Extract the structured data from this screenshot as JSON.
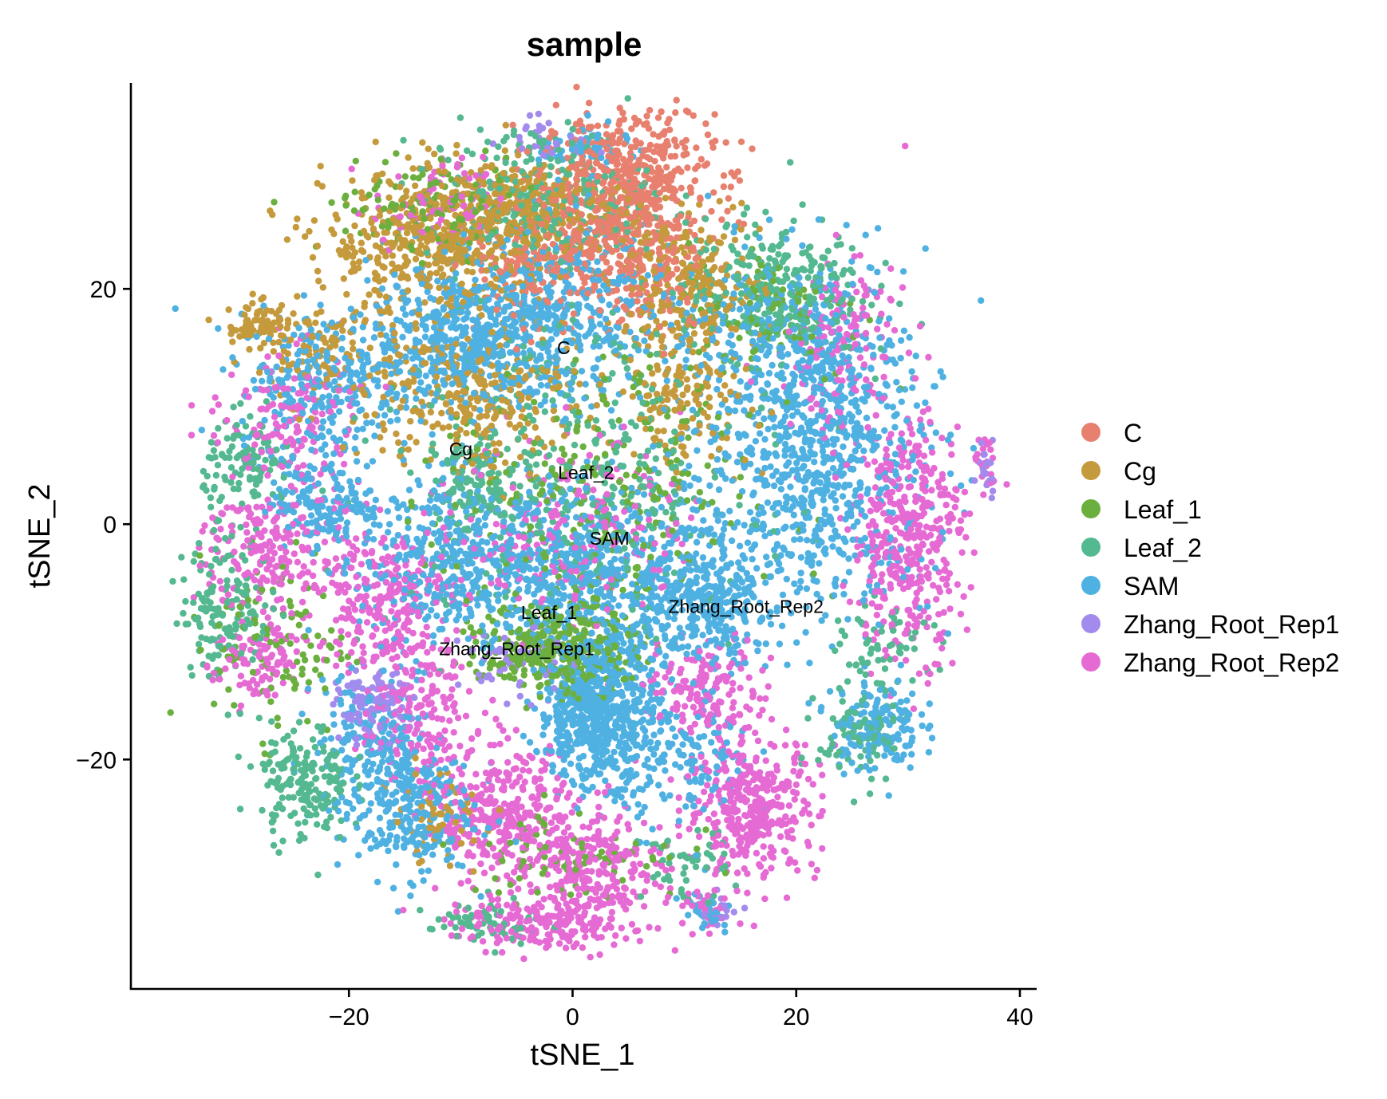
{
  "chart_data": {
    "type": "scatter",
    "title": "sample",
    "xlabel": "tSNE_1",
    "ylabel": "tSNE_2",
    "xlim": [
      -39.5,
      41.5
    ],
    "ylim": [
      -39.5,
      37.5
    ],
    "x_ticks": [
      -20,
      0,
      20,
      40
    ],
    "x_tick_labels": [
      "−20",
      "0",
      "20",
      "40"
    ],
    "y_ticks": [
      -20,
      0,
      20
    ],
    "y_tick_labels": [
      "−20",
      "0",
      "20"
    ],
    "grid": false,
    "legend_position": "right",
    "legend": [
      {
        "name": "C",
        "color": "#E7806F"
      },
      {
        "name": "Cg",
        "color": "#C49A3C"
      },
      {
        "name": "Leaf_1",
        "color": "#6BB03F"
      },
      {
        "name": "Leaf_2",
        "color": "#54B890"
      },
      {
        "name": "SAM",
        "color": "#4FB1E2"
      },
      {
        "name": "Zhang_Root_Rep1",
        "color": "#A38BEE"
      },
      {
        "name": "Zhang_Root_Rep2",
        "color": "#E66AD4"
      }
    ],
    "cluster_labels": [
      {
        "text": "C",
        "x": -0.8,
        "y": 15.0
      },
      {
        "text": "Cg",
        "x": -10.0,
        "y": 6.4
      },
      {
        "text": "Leaf_2",
        "x": 1.2,
        "y": 4.4
      },
      {
        "text": "SAM",
        "x": 3.3,
        "y": -1.2
      },
      {
        "text": "Leaf_1",
        "x": -2.1,
        "y": -7.5
      },
      {
        "text": "Zhang_Root_Rep2",
        "x": 15.5,
        "y": -7.0
      },
      {
        "text": "Zhang_Root_Rep1",
        "x": -5.0,
        "y": -10.6
      }
    ],
    "series": [
      {
        "name": "C",
        "color": "#E7806F",
        "clusters": [
          {
            "x": 5.0,
            "y": 29.0,
            "sx": 3.8,
            "sy": 3.0,
            "n": 520
          },
          {
            "x": 1.0,
            "y": 23.0,
            "sx": 4.0,
            "sy": 2.5,
            "n": 160
          },
          {
            "x": -4.0,
            "y": 21.5,
            "sx": 3.0,
            "sy": 2.0,
            "n": 90
          },
          {
            "x": 7.0,
            "y": 21.0,
            "sx": 3.0,
            "sy": 2.5,
            "n": 120
          }
        ]
      },
      {
        "name": "Cg",
        "color": "#C49A3C",
        "clusters": [
          {
            "x": -12.0,
            "y": 24.0,
            "sx": 5.0,
            "sy": 3.0,
            "n": 480
          },
          {
            "x": -3.0,
            "y": 27.0,
            "sx": 4.0,
            "sy": 2.0,
            "n": 260
          },
          {
            "x": 10.0,
            "y": 20.0,
            "sx": 3.5,
            "sy": 3.0,
            "n": 260
          },
          {
            "x": -9.0,
            "y": 11.0,
            "sx": 4.5,
            "sy": 3.5,
            "n": 300
          },
          {
            "x": -22.0,
            "y": 15.0,
            "sx": 3.5,
            "sy": 2.5,
            "n": 120
          },
          {
            "x": -28.0,
            "y": 17.0,
            "sx": 1.5,
            "sy": 1.0,
            "n": 70
          },
          {
            "x": 10.0,
            "y": 10.0,
            "sx": 3.0,
            "sy": 2.5,
            "n": 140
          },
          {
            "x": -12.0,
            "y": -25.0,
            "sx": 2.0,
            "sy": 2.0,
            "n": 60
          }
        ]
      },
      {
        "name": "Leaf_1",
        "color": "#6BB03F",
        "clusters": [
          {
            "x": -1.0,
            "y": -10.5,
            "sx": 3.5,
            "sy": 2.0,
            "n": 360
          },
          {
            "x": -12.0,
            "y": 27.0,
            "sx": 5.0,
            "sy": 2.0,
            "n": 140
          },
          {
            "x": 2.0,
            "y": 2.0,
            "sx": 7.0,
            "sy": 6.0,
            "n": 260
          },
          {
            "x": -26.0,
            "y": -10.0,
            "sx": 3.0,
            "sy": 4.0,
            "n": 100
          },
          {
            "x": 18.0,
            "y": 18.0,
            "sx": 4.0,
            "sy": 3.0,
            "n": 100
          },
          {
            "x": 0.0,
            "y": -28.0,
            "sx": 5.0,
            "sy": 2.0,
            "n": 80
          }
        ]
      },
      {
        "name": "Leaf_2",
        "color": "#54B890",
        "clusters": [
          {
            "x": -3.0,
            "y": 28.0,
            "sx": 5.0,
            "sy": 3.0,
            "n": 240
          },
          {
            "x": 18.0,
            "y": 20.0,
            "sx": 4.0,
            "sy": 3.0,
            "n": 280
          },
          {
            "x": -31.0,
            "y": -7.0,
            "sx": 2.0,
            "sy": 3.0,
            "n": 160
          },
          {
            "x": -24.0,
            "y": -22.0,
            "sx": 2.0,
            "sy": 2.5,
            "n": 180
          },
          {
            "x": -29.0,
            "y": 5.0,
            "sx": 2.0,
            "sy": 2.0,
            "n": 110
          },
          {
            "x": 0.0,
            "y": 4.0,
            "sx": 8.0,
            "sy": 7.0,
            "n": 380
          },
          {
            "x": -9.0,
            "y": 3.0,
            "sx": 2.0,
            "sy": 2.0,
            "n": 90
          },
          {
            "x": 26.0,
            "y": -18.0,
            "sx": 2.0,
            "sy": 2.0,
            "n": 90
          },
          {
            "x": -8.0,
            "y": -34.0,
            "sx": 2.5,
            "sy": 1.0,
            "n": 60
          },
          {
            "x": 10.0,
            "y": -29.0,
            "sx": 2.0,
            "sy": 1.5,
            "n": 50
          },
          {
            "x": 28.0,
            "y": -11.0,
            "sx": 2.0,
            "sy": 2.0,
            "n": 60
          }
        ]
      },
      {
        "name": "SAM",
        "color": "#4FB1E2",
        "clusters": [
          {
            "x": 2.0,
            "y": -16.0,
            "sx": 2.5,
            "sy": 3.0,
            "n": 620
          },
          {
            "x": -9.0,
            "y": 16.0,
            "sx": 4.5,
            "sy": 3.0,
            "n": 520
          },
          {
            "x": 0.0,
            "y": 18.0,
            "sx": 4.5,
            "sy": 4.0,
            "n": 360
          },
          {
            "x": 20.0,
            "y": 13.0,
            "sx": 5.0,
            "sy": 5.0,
            "n": 560
          },
          {
            "x": 22.0,
            "y": 2.0,
            "sx": 5.0,
            "sy": 5.0,
            "n": 480
          },
          {
            "x": 5.0,
            "y": -5.0,
            "sx": 6.0,
            "sy": 4.0,
            "n": 520
          },
          {
            "x": -12.0,
            "y": -3.0,
            "sx": 3.5,
            "sy": 4.0,
            "n": 340
          },
          {
            "x": -22.0,
            "y": 12.0,
            "sx": 4.0,
            "sy": 3.0,
            "n": 280
          },
          {
            "x": -15.0,
            "y": -24.0,
            "sx": 3.0,
            "sy": 3.0,
            "n": 300
          },
          {
            "x": -22.0,
            "y": 2.0,
            "sx": 2.5,
            "sy": 2.0,
            "n": 160
          },
          {
            "x": 27.0,
            "y": -17.0,
            "sx": 2.0,
            "sy": 2.0,
            "n": 160
          },
          {
            "x": 10.0,
            "y": -20.0,
            "sx": 3.0,
            "sy": 3.0,
            "n": 160
          },
          {
            "x": 12.0,
            "y": -7.0,
            "sx": 3.0,
            "sy": 2.5,
            "n": 220
          },
          {
            "x": -2.0,
            "y": -3.0,
            "sx": 4.0,
            "sy": 3.0,
            "n": 220
          },
          {
            "x": -18.0,
            "y": -18.0,
            "sx": 2.5,
            "sy": 2.5,
            "n": 140
          },
          {
            "x": 1.0,
            "y": 32.0,
            "sx": 2.0,
            "sy": 1.0,
            "n": 50
          },
          {
            "x": 12.0,
            "y": -33.0,
            "sx": 1.2,
            "sy": 1.0,
            "n": 30
          }
        ]
      },
      {
        "name": "Zhang_Root_Rep1",
        "color": "#A38BEE",
        "clusters": [
          {
            "x": -18.0,
            "y": -15.5,
            "sx": 1.5,
            "sy": 1.5,
            "n": 110
          },
          {
            "x": -5.0,
            "y": -12.0,
            "sx": 2.5,
            "sy": 1.5,
            "n": 50
          },
          {
            "x": 37.0,
            "y": 5.0,
            "sx": 0.6,
            "sy": 1.2,
            "n": 20
          },
          {
            "x": -2.0,
            "y": 33.0,
            "sx": 2.0,
            "sy": 1.0,
            "n": 30
          },
          {
            "x": 13.0,
            "y": -33.0,
            "sx": 1.0,
            "sy": 1.0,
            "n": 15
          }
        ]
      },
      {
        "name": "Zhang_Root_Rep2",
        "color": "#E66AD4",
        "clusters": [
          {
            "x": 30.0,
            "y": -1.0,
            "sx": 2.5,
            "sy": 5.0,
            "n": 420
          },
          {
            "x": 16.0,
            "y": -24.0,
            "sx": 3.0,
            "sy": 3.0,
            "n": 380
          },
          {
            "x": -6.0,
            "y": -25.0,
            "sx": 3.0,
            "sy": 3.0,
            "n": 320
          },
          {
            "x": 2.0,
            "y": -30.0,
            "sx": 3.0,
            "sy": 3.0,
            "n": 280
          },
          {
            "x": -3.0,
            "y": -34.0,
            "sx": 4.0,
            "sy": 1.0,
            "n": 150
          },
          {
            "x": -17.0,
            "y": -6.0,
            "sx": 3.0,
            "sy": 3.0,
            "n": 260
          },
          {
            "x": -27.0,
            "y": -2.0,
            "sx": 3.0,
            "sy": 3.0,
            "n": 220
          },
          {
            "x": -25.0,
            "y": 9.0,
            "sx": 3.0,
            "sy": 3.0,
            "n": 140
          },
          {
            "x": 24.0,
            "y": 15.0,
            "sx": 3.0,
            "sy": 4.0,
            "n": 160
          },
          {
            "x": -14.0,
            "y": -16.0,
            "sx": 2.5,
            "sy": 3.0,
            "n": 180
          },
          {
            "x": 0.0,
            "y": 0.0,
            "sx": 5.0,
            "sy": 4.0,
            "n": 220
          },
          {
            "x": 12.0,
            "y": -14.0,
            "sx": 3.0,
            "sy": 2.0,
            "n": 160
          },
          {
            "x": 12.0,
            "y": -33.0,
            "sx": 1.0,
            "sy": 1.0,
            "n": 30
          },
          {
            "x": 37.0,
            "y": 5.0,
            "sx": 0.6,
            "sy": 1.2,
            "n": 20
          },
          {
            "x": -28.0,
            "y": -12.0,
            "sx": 2.0,
            "sy": 2.0,
            "n": 100
          },
          {
            "x": -12.0,
            "y": 27.0,
            "sx": 3.0,
            "sy": 2.0,
            "n": 100
          }
        ]
      }
    ]
  }
}
